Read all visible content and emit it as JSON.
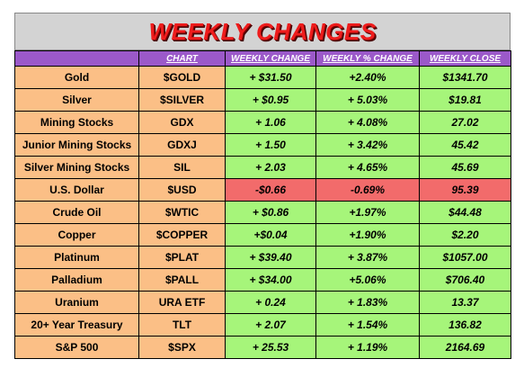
{
  "title": "WEEKLY CHANGES",
  "headers": {
    "name": "",
    "chart": "CHART",
    "weekly_change": "WEEKLY CHANGE",
    "weekly_pct_change": "WEEKLY % CHANGE",
    "weekly_close": "WEEKLY CLOSE"
  },
  "colors": {
    "title": "#ee1c1c",
    "header_bg": "#9b59c9",
    "name_bg": "#fbbf86",
    "positive_bg": "#a6f57a",
    "negative_bg": "#f26b6b"
  },
  "rows": [
    {
      "name": "Gold",
      "chart": "$GOLD",
      "change": "+ $31.50",
      "pct": "+2.40%",
      "close": "$1341.70",
      "negative": false
    },
    {
      "name": "Silver",
      "chart": "$SILVER",
      "change": "+ $0.95",
      "pct": "+ 5.03%",
      "close": "$19.81",
      "negative": false
    },
    {
      "name": "Mining Stocks",
      "chart": "GDX",
      "change": "+ 1.06",
      "pct": "+ 4.08%",
      "close": "27.02",
      "negative": false
    },
    {
      "name": "Junior Mining Stocks",
      "chart": "GDXJ",
      "change": "+ 1.50",
      "pct": "+ 3.42%",
      "close": "45.42",
      "negative": false
    },
    {
      "name": "Silver Mining Stocks",
      "chart": "SIL",
      "change": "+ 2.03",
      "pct": "+ 4.65%",
      "close": "45.69",
      "negative": false
    },
    {
      "name": "U.S. Dollar",
      "chart": "$USD",
      "change": "-$0.66",
      "pct": "-0.69%",
      "close": "95.39",
      "negative": true
    },
    {
      "name": "Crude Oil",
      "chart": "$WTIC",
      "change": "+ $0.86",
      "pct": "+1.97%",
      "close": "$44.48",
      "negative": false
    },
    {
      "name": "Copper",
      "chart": "$COPPER",
      "change": "+$0.04",
      "pct": "+1.90%",
      "close": "$2.20",
      "negative": false
    },
    {
      "name": "Platinum",
      "chart": "$PLAT",
      "change": "+ $39.40",
      "pct": "+ 3.87%",
      "close": "$1057.00",
      "negative": false
    },
    {
      "name": "Palladium",
      "chart": "$PALL",
      "change": "+ $34.00",
      "pct": "+5.06%",
      "close": "$706.40",
      "negative": false
    },
    {
      "name": "Uranium",
      "chart": "URA ETF",
      "change": "+ 0.24",
      "pct": "+ 1.83%",
      "close": "13.37",
      "negative": false
    },
    {
      "name": "20+ Year Treasury",
      "chart": "TLT",
      "change": "+ 2.07",
      "pct": "+ 1.54%",
      "close": "136.82",
      "negative": false
    },
    {
      "name": "S&P 500",
      "chart": "$SPX",
      "change": "+ 25.53",
      "pct": "+ 1.19%",
      "close": "2164.69",
      "negative": false
    }
  ]
}
